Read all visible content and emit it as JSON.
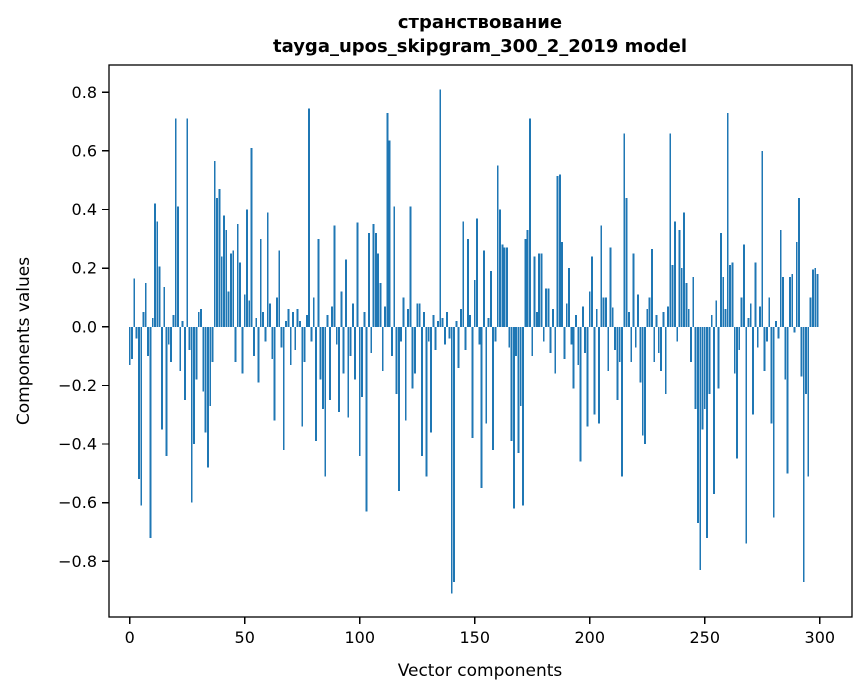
{
  "figure": {
    "title": "странствование",
    "subtitle": "tayga_upos_skipgram_300_2_2019 model",
    "xlabel": "Vector components",
    "ylabel": "Components values",
    "bar_color": "#1f77b4",
    "axis_color": "#000000",
    "background": "#ffffff"
  },
  "chart_data": {
    "type": "bar",
    "title": "странствование",
    "subtitle": "tayga_upos_skipgram_300_2_2019 model",
    "xlabel": "Vector components",
    "ylabel": "Components values",
    "legend": "none",
    "grid": false,
    "bar_color": "#1f77b4",
    "n_bars": 300,
    "bar_width_units": 0.8,
    "xlim": [
      -9,
      314
    ],
    "ylim": [
      -0.99,
      0.893
    ],
    "x_ticks": [
      0,
      50,
      100,
      150,
      200,
      250,
      300
    ],
    "x_tick_labels": [
      "0",
      "50",
      "100",
      "150",
      "200",
      "250",
      "300"
    ],
    "y_ticks": [
      0.8,
      0.6,
      0.4,
      0.2,
      0.0,
      -0.2,
      -0.4,
      -0.6,
      -0.8
    ],
    "y_tick_labels": [
      "0.8",
      "0.6",
      "0.4",
      "0.2",
      "0.0",
      "−0.2",
      "−0.4",
      "−0.6",
      "−0.8"
    ],
    "values": [
      -0.13,
      -0.11,
      0.165,
      -0.04,
      -0.52,
      -0.61,
      0.05,
      0.15,
      -0.1,
      -0.72,
      0.03,
      0.42,
      0.36,
      0.205,
      -0.35,
      0.135,
      -0.44,
      -0.06,
      -0.12,
      0.04,
      0.71,
      0.41,
      -0.15,
      0.02,
      -0.25,
      0.71,
      -0.08,
      -0.6,
      -0.4,
      -0.18,
      0.05,
      0.06,
      -0.22,
      -0.36,
      -0.48,
      -0.27,
      -0.12,
      0.565,
      0.44,
      0.47,
      0.24,
      0.38,
      0.33,
      0.12,
      0.25,
      0.26,
      -0.12,
      0.35,
      0.22,
      -0.16,
      0.11,
      0.4,
      0.09,
      0.61,
      -0.1,
      0.03,
      -0.19,
      0.3,
      0.05,
      -0.05,
      0.39,
      0.08,
      -0.11,
      -0.32,
      0.1,
      0.26,
      -0.07,
      -0.42,
      0.02,
      0.06,
      -0.13,
      0.05,
      -0.08,
      0.06,
      0.02,
      -0.34,
      -0.12,
      0.04,
      0.745,
      -0.05,
      0.1,
      -0.39,
      0.3,
      -0.18,
      -0.28,
      -0.51,
      0.04,
      -0.25,
      0.07,
      0.345,
      -0.06,
      -0.29,
      0.12,
      -0.16,
      0.23,
      -0.31,
      -0.1,
      0.08,
      -0.18,
      0.355,
      -0.44,
      -0.24,
      0.05,
      -0.63,
      0.32,
      -0.09,
      0.35,
      0.32,
      0.25,
      0.15,
      -0.15,
      0.07,
      0.73,
      0.635,
      -0.1,
      0.41,
      -0.23,
      -0.56,
      -0.05,
      0.1,
      -0.32,
      0.06,
      0.41,
      -0.21,
      -0.16,
      0.08,
      0.08,
      -0.44,
      0.05,
      -0.51,
      -0.05,
      -0.36,
      0.04,
      -0.08,
      0.02,
      0.81,
      0.03,
      -0.06,
      0.05,
      -0.04,
      -0.91,
      -0.87,
      0.02,
      -0.14,
      0.06,
      0.36,
      -0.08,
      0.3,
      0.04,
      -0.38,
      0.16,
      0.37,
      -0.06,
      -0.55,
      0.26,
      -0.33,
      0.03,
      0.19,
      -0.42,
      -0.05,
      0.55,
      0.4,
      0.28,
      0.27,
      0.27,
      -0.07,
      -0.39,
      -0.62,
      -0.1,
      -0.43,
      -0.27,
      -0.61,
      0.3,
      0.33,
      0.71,
      -0.1,
      0.24,
      0.05,
      0.25,
      0.25,
      -0.05,
      0.13,
      0.13,
      -0.09,
      0.06,
      -0.16,
      0.515,
      0.52,
      0.29,
      -0.11,
      0.08,
      0.2,
      -0.06,
      -0.21,
      0.04,
      -0.13,
      -0.46,
      0.07,
      -0.09,
      -0.34,
      0.12,
      0.24,
      -0.3,
      0.06,
      -0.33,
      0.345,
      0.1,
      0.1,
      -0.15,
      0.27,
      0.065,
      -0.08,
      -0.25,
      -0.12,
      -0.51,
      0.66,
      0.44,
      0.05,
      -0.12,
      0.25,
      -0.07,
      0.11,
      -0.19,
      -0.37,
      -0.4,
      0.06,
      0.1,
      0.265,
      -0.12,
      0.04,
      -0.09,
      -0.15,
      0.05,
      -0.23,
      0.07,
      0.66,
      0.21,
      0.36,
      -0.05,
      0.33,
      0.2,
      0.39,
      0.15,
      0.06,
      -0.12,
      0.17,
      -0.28,
      -0.67,
      -0.83,
      -0.35,
      -0.28,
      -0.72,
      -0.23,
      0.04,
      -0.57,
      0.09,
      -0.21,
      0.32,
      0.17,
      0.06,
      0.73,
      0.21,
      0.22,
      -0.16,
      -0.45,
      -0.08,
      0.1,
      0.28,
      -0.74,
      0.03,
      0.08,
      -0.3,
      0.22,
      -0.07,
      0.07,
      0.6,
      -0.15,
      -0.05,
      0.1,
      -0.33,
      -0.65,
      0.02,
      -0.04,
      0.33,
      0.17,
      -0.18,
      -0.5,
      0.17,
      0.18,
      -0.02,
      0.29,
      0.44,
      -0.17,
      -0.87,
      -0.23,
      -0.51,
      0.1,
      0.195,
      0.2,
      0.18
    ]
  }
}
